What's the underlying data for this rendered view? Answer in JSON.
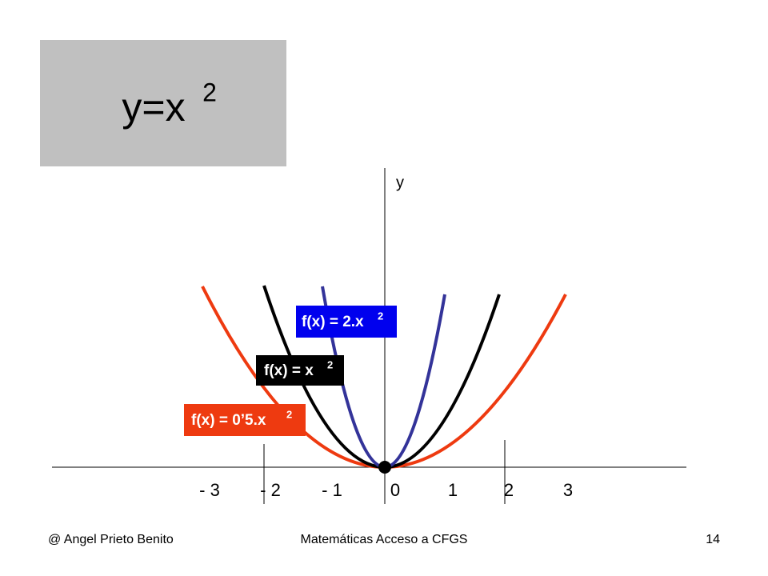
{
  "title": {
    "base": "y=x",
    "exponent": "2"
  },
  "axes": {
    "y_label": "y",
    "x_tick_labels": [
      "- 3",
      "- 2",
      "- 1",
      "0",
      "1",
      "2",
      "3"
    ]
  },
  "curves": [
    {
      "label": "f(x) = 2.x",
      "exponent": "2"
    },
    {
      "label": "f(x) = x",
      "exponent": "2"
    },
    {
      "label": "f(x) = 0’5.x",
      "exponent": "2"
    }
  ],
  "footer": {
    "author": "@   Angel Prieto Benito",
    "course": "Matemáticas Acceso a CFGS",
    "page": "14"
  }
}
